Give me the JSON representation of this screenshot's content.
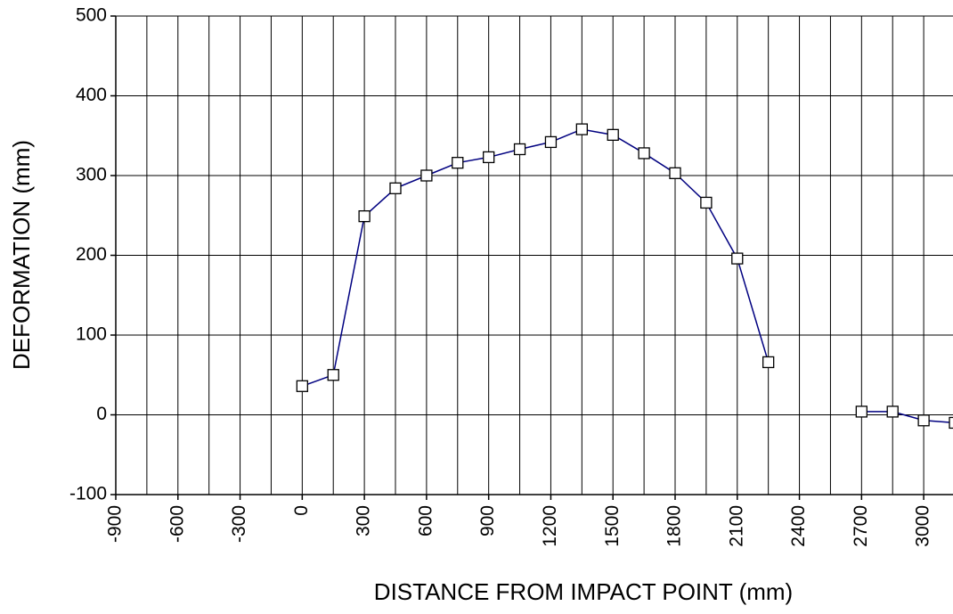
{
  "chart_data": {
    "type": "line",
    "xlabel": "DISTANCE FROM IMPACT POINT (mm)",
    "ylabel": "DEFORMATION (mm)",
    "x": [
      0,
      150,
      300,
      450,
      600,
      750,
      900,
      1050,
      1200,
      1350,
      1500,
      1650,
      1800,
      1950,
      2100,
      2250,
      2400,
      2550,
      2700,
      2850,
      3000,
      3150
    ],
    "series": [
      {
        "name": "Deformation",
        "color": "#000080",
        "values": [
          36,
          50,
          249,
          284,
          300,
          316,
          323,
          333,
          342,
          358,
          351,
          328,
          303,
          266,
          196,
          66,
          null,
          null,
          4,
          4,
          -7,
          -10
        ]
      }
    ],
    "xlim": [
      -900,
      3150
    ],
    "xticks": [
      -900,
      -600,
      -300,
      0,
      300,
      600,
      900,
      1200,
      1500,
      1800,
      2100,
      2400,
      2700,
      3000
    ],
    "xminorticks": [
      -750,
      -450,
      -150,
      150,
      450,
      750,
      1050,
      1350,
      1650,
      1950,
      2250,
      2550,
      2850
    ],
    "ylim": [
      -100,
      500
    ],
    "yticks": [
      -100,
      0,
      100,
      200,
      300,
      400,
      500
    ],
    "grid": true
  }
}
